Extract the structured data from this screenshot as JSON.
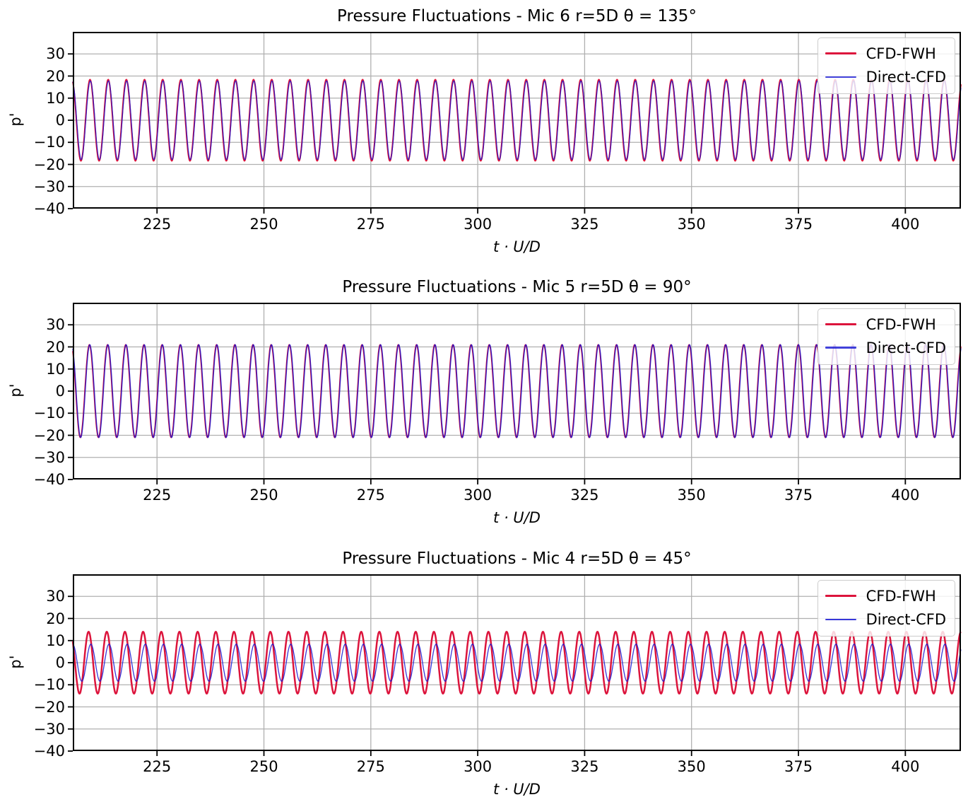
{
  "figure": {
    "background": "#ffffff",
    "grid_color": "#b0b0b0",
    "spine_color": "#000000",
    "tick_color": "#000000",
    "accent_red": "#dc143c",
    "accent_blue": "#1414d2"
  },
  "chart_data": [
    {
      "type": "line",
      "waveform": "sinusoid",
      "title": "Pressure Fluctuations - Mic 6  r=5D  θ = 135°",
      "xlabel": "t · U/D",
      "ylabel": "p'",
      "xlim": [
        205.3,
        413.0
      ],
      "ylim": [
        -40,
        40
      ],
      "xticks": [
        225,
        250,
        275,
        300,
        325,
        350,
        375,
        400
      ],
      "yticks": [
        30,
        20,
        10,
        0,
        -10,
        -20,
        -30,
        -40
      ],
      "grid": true,
      "legend_position": "upper right",
      "period": 4.25,
      "series": [
        {
          "name": "CFD-FWH",
          "color": "#dc143c",
          "alpha": 1.0,
          "amplitude": 18.4,
          "peak_t": 205.08,
          "linewidth": 2.0
        },
        {
          "name": "Direct-CFD",
          "color": "#1414d2",
          "alpha": 0.8,
          "amplitude": 17.8,
          "peak_t": 205.16,
          "linewidth": 1.3
        }
      ]
    },
    {
      "type": "line",
      "waveform": "sinusoid",
      "title": "Pressure Fluctuations - Mic 5  r=5D  θ = 90°",
      "xlabel": "t · U/D",
      "ylabel": "p'",
      "xlim": [
        205.3,
        413.0
      ],
      "ylim": [
        -40,
        40
      ],
      "xticks": [
        225,
        250,
        275,
        300,
        325,
        350,
        375,
        400
      ],
      "yticks": [
        30,
        20,
        10,
        0,
        -10,
        -20,
        -30,
        -40
      ],
      "grid": true,
      "legend_position": "upper right",
      "period": 4.25,
      "series": [
        {
          "name": "CFD-FWH",
          "color": "#dc143c",
          "alpha": 1.0,
          "amplitude": 21.0,
          "peak_t": 204.94,
          "linewidth": 1.8
        },
        {
          "name": "Direct-CFD",
          "color": "#1414d2",
          "alpha": 0.8,
          "amplitude": 21.0,
          "peak_t": 205.02,
          "linewidth": 1.5
        }
      ]
    },
    {
      "type": "line",
      "waveform": "sinusoid",
      "title": "Pressure Fluctuations - Mic 4  r=5D  θ = 45°",
      "xlabel": "t · U/D",
      "ylabel": "p'",
      "xlim": [
        205.3,
        413.0
      ],
      "ylim": [
        -40,
        40
      ],
      "xticks": [
        225,
        250,
        275,
        300,
        325,
        350,
        375,
        400
      ],
      "yticks": [
        30,
        20,
        10,
        0,
        -10,
        -20,
        -30,
        -40
      ],
      "grid": true,
      "legend_position": "upper right",
      "period": 4.25,
      "series": [
        {
          "name": "CFD-FWH",
          "color": "#dc143c",
          "alpha": 1.0,
          "amplitude": 14.0,
          "peak_t": 204.75,
          "linewidth": 2.5
        },
        {
          "name": "Direct-CFD",
          "color": "#1414d2",
          "alpha": 0.85,
          "amplitude": 8.4,
          "peak_t": 205.28,
          "linewidth": 1.3
        }
      ]
    }
  ]
}
